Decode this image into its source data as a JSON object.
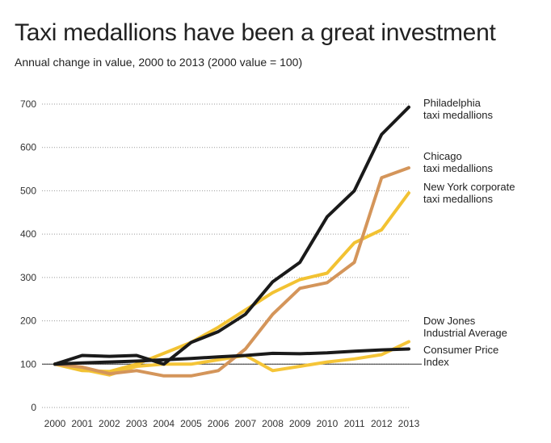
{
  "title": "Taxi medallions have been a great investment",
  "subtitle": "Annual change in value, 2000 to 2013 (2000 value = 100)",
  "chart_data": {
    "type": "line",
    "title": "Taxi medallions have been a great investment",
    "subtitle": "Annual change in value, 2000 to 2013 (2000 value = 100)",
    "xlabel": "",
    "ylabel": "",
    "x": [
      2000,
      2001,
      2002,
      2003,
      2004,
      2005,
      2006,
      2007,
      2008,
      2009,
      2010,
      2011,
      2012,
      2013
    ],
    "ylim": [
      0,
      700
    ],
    "yticks": [
      0,
      100,
      200,
      300,
      400,
      500,
      600,
      700
    ],
    "grid": "horizontal-dotted",
    "legend": "right-inline",
    "series": [
      {
        "name": "Philadelphia taxi medallions",
        "label_lines": [
          "Philadelphia",
          "taxi medallions"
        ],
        "color": "#1a1a1a",
        "values": [
          100,
          120,
          118,
          120,
          100,
          150,
          175,
          215,
          290,
          335,
          440,
          500,
          630,
          693
        ]
      },
      {
        "name": "Chicago taxi medallions",
        "label_lines": [
          "Chicago",
          "taxi medallions"
        ],
        "color": "#d4955a",
        "values": [
          100,
          93,
          78,
          85,
          73,
          73,
          85,
          135,
          215,
          275,
          288,
          335,
          530,
          553
        ]
      },
      {
        "name": "New York corporate taxi medallions",
        "label_lines": [
          "New York corporate",
          "taxi medallions"
        ],
        "color": "#f2c232",
        "values": [
          100,
          85,
          83,
          100,
          125,
          150,
          185,
          225,
          265,
          295,
          310,
          380,
          410,
          495
        ]
      },
      {
        "name": "Dow Jones Industrial Average",
        "label_lines": [
          "Dow Jones",
          "Industrial Average"
        ],
        "color": "#f5c538",
        "values": [
          100,
          88,
          75,
          95,
          100,
          100,
          110,
          120,
          85,
          95,
          105,
          112,
          122,
          152
        ]
      },
      {
        "name": "Consumer Price Index",
        "label_lines": [
          "Consumer Price",
          "Index"
        ],
        "color": "#1a1a1a",
        "values": [
          100,
          103,
          105,
          107,
          110,
          113,
          117,
          120,
          125,
          124,
          126,
          130,
          133,
          135
        ]
      }
    ]
  }
}
